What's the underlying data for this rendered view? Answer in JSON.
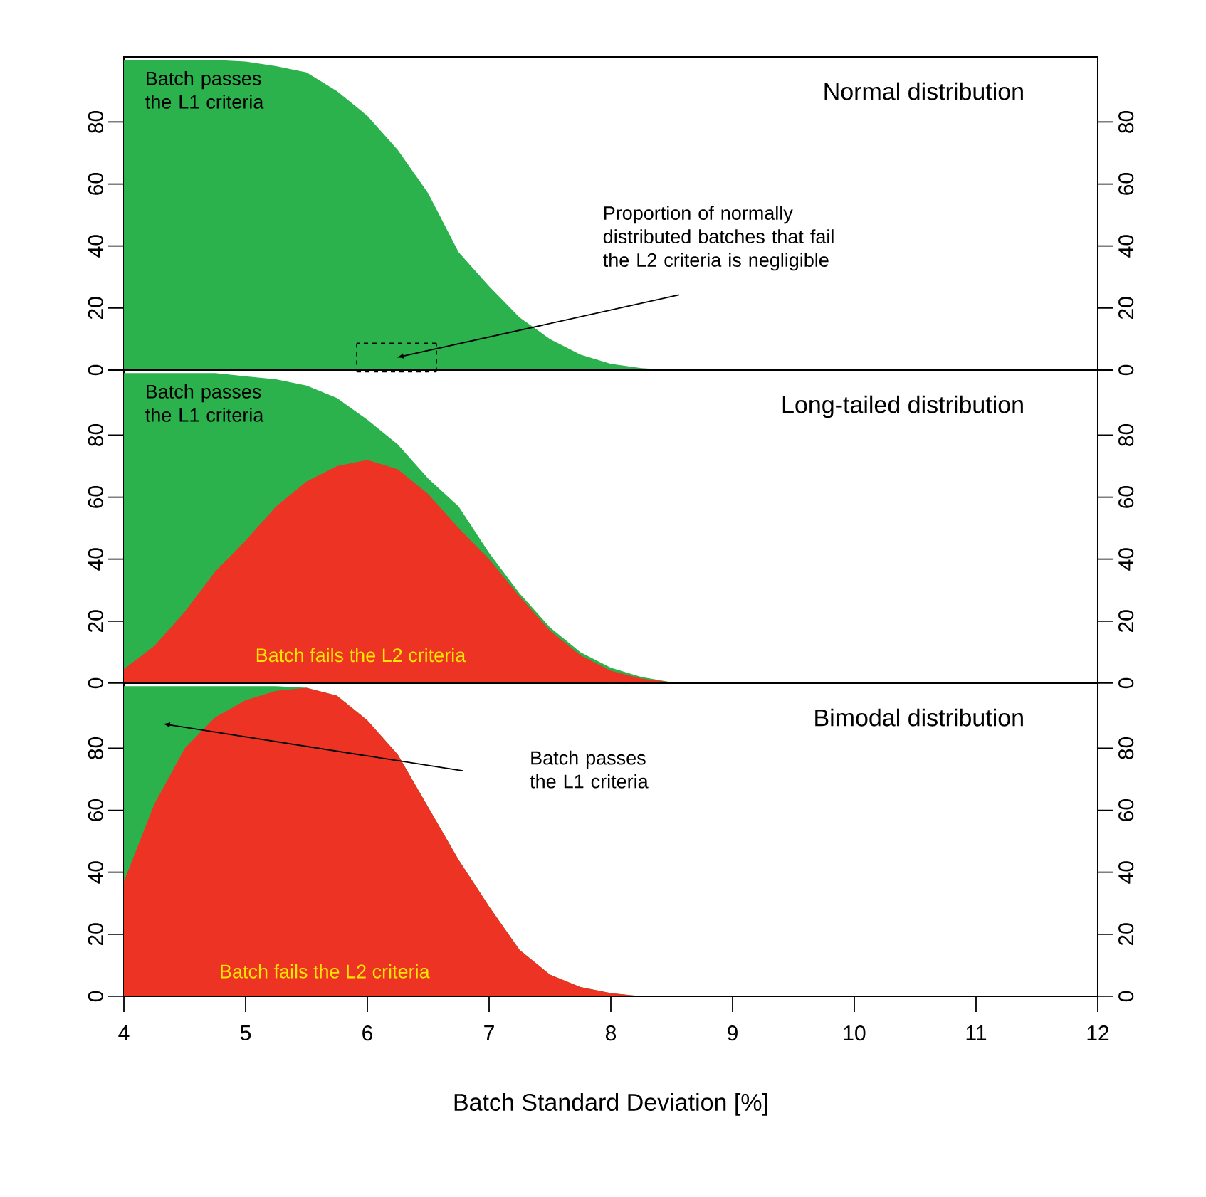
{
  "chart_data": [
    {
      "type": "area",
      "title": "Normal distribution",
      "x": [
        4,
        4.25,
        4.5,
        4.75,
        5,
        5.25,
        5.5,
        5.75,
        6,
        6.25,
        6.5,
        6.75,
        7,
        7.25,
        7.5,
        7.75,
        8,
        8.25,
        8.5,
        8.75,
        9,
        12
      ],
      "series": [
        {
          "color": "#2bb24c",
          "values": [
            100,
            100,
            100,
            100,
            99.5,
            98,
            96,
            90,
            82,
            71,
            57,
            38,
            27,
            17,
            10,
            5,
            2,
            0.6,
            0,
            0,
            0,
            0
          ]
        }
      ],
      "xlim": [
        4,
        12
      ],
      "ylim": [
        0,
        101
      ],
      "yticks": [
        0,
        20,
        40,
        60,
        80
      ],
      "y2lim": [
        0,
        101
      ],
      "y2ticks": [
        0,
        20,
        40,
        60,
        80
      ],
      "tick_labels": "y",
      "annotations": [
        "Batch passes the L1 criteria",
        "Proportion of normally distributed batches that fail the L2 criteria is negligible"
      ]
    },
    {
      "type": "area",
      "title": "Long-tailed distribution",
      "x": [
        4,
        4.25,
        4.5,
        4.75,
        5,
        5.25,
        5.5,
        5.75,
        6,
        6.25,
        6.5,
        6.75,
        7,
        7.25,
        7.5,
        7.75,
        8,
        8.25,
        8.5,
        8.75,
        9,
        12
      ],
      "series": [
        {
          "color": "#2bb24c",
          "values": [
            100,
            100,
            100,
            100,
            99,
            98,
            96,
            92,
            85,
            77,
            66,
            57,
            42,
            29,
            18,
            10,
            5,
            2,
            0.3,
            0,
            0,
            0
          ]
        },
        {
          "color": "#ec3324",
          "values": [
            4.5,
            12,
            23,
            36,
            46,
            57,
            65,
            70,
            72,
            69,
            61,
            50,
            40,
            28,
            17,
            9,
            4,
            1.5,
            0.3,
            0,
            0,
            0
          ]
        }
      ],
      "xlim": [
        4,
        12
      ],
      "ylim": [
        0,
        101
      ],
      "yticks": [
        0,
        20,
        40,
        60,
        80
      ],
      "y2lim": [
        0,
        101
      ],
      "y2ticks": [
        0,
        20,
        40,
        60,
        80
      ],
      "tick_labels": "y",
      "annotations": [
        "Batch passes the L1 criteria",
        "Batch fails the L2 criteria"
      ]
    },
    {
      "type": "area",
      "title": "Bimodal distribution",
      "x": [
        4,
        4.25,
        4.5,
        4.75,
        5,
        5.25,
        5.5,
        5.75,
        6,
        6.25,
        6.5,
        6.75,
        7,
        7.25,
        7.5,
        7.75,
        8,
        8.25,
        8.5,
        8.75,
        9,
        12
      ],
      "series": [
        {
          "color": "#2bb24c",
          "values": [
            100,
            100,
            100,
            100,
            100,
            100,
            99.5,
            97,
            89,
            78,
            61,
            44,
            29,
            15,
            7,
            3,
            1,
            0,
            0,
            0,
            0,
            0
          ]
        },
        {
          "color": "#ec3324",
          "values": [
            37,
            62,
            80,
            90,
            95.5,
            98.5,
            99.5,
            97,
            89,
            78,
            61,
            44,
            29,
            15,
            7,
            3,
            1,
            0,
            0,
            0,
            0,
            0
          ]
        }
      ],
      "xlim": [
        4,
        12
      ],
      "xticks": [
        4,
        5,
        6,
        7,
        8,
        9,
        10,
        11,
        12
      ],
      "ylim": [
        0,
        101
      ],
      "yticks": [
        0,
        20,
        40,
        60,
        80
      ],
      "y2lim": [
        0,
        101
      ],
      "y2ticks": [
        0,
        20,
        40,
        60,
        80
      ],
      "xlabel": "Batch Standard Deviation [%]",
      "annotations": [
        "Batch passes the L1 criteria",
        "Batch fails the L2 criteria"
      ]
    }
  ]
}
